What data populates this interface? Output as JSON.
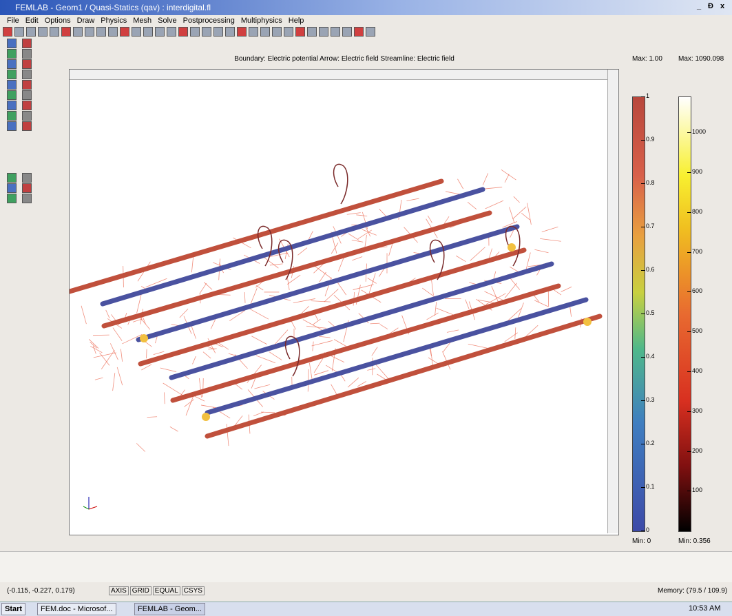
{
  "window": {
    "title": "FEMLAB - Geom1 / Quasi-Statics (qav) : interdigital.fl",
    "controls": [
      "_",
      "Đ",
      "x"
    ]
  },
  "menu": [
    "File",
    "Edit",
    "Options",
    "Draw",
    "Physics",
    "Mesh",
    "Solve",
    "Postprocessing",
    "Multiphysics",
    "Help"
  ],
  "plot": {
    "title": "Boundary: Electric potential  Arrow: Electric field  Streamline: Electric field"
  },
  "colorbars": [
    {
      "max_label": "Max: 1.00",
      "min_label": "Min: 0",
      "range": [
        0,
        1
      ],
      "ticks": [
        1,
        0.9,
        0.8,
        0.7,
        0.6,
        0.5,
        0.4,
        0.3,
        0.2,
        0.1,
        0
      ]
    },
    {
      "max_label": "Max: 1090.098",
      "min_label": "Min: 0.356",
      "range": [
        0.356,
        1090.098
      ],
      "ticks": [
        1000,
        900,
        800,
        700,
        600,
        500,
        400,
        300,
        200,
        100
      ]
    }
  ],
  "status": {
    "coords": "(-0.115, -0.227, 0.179)",
    "buttons": [
      "AXIS",
      "GRID",
      "EQUAL",
      "CSYS"
    ],
    "memory": "Memory: (79.5 / 109.9)"
  },
  "taskbar": {
    "start": "Start",
    "tasks": [
      "FEM.doc - Microsof...",
      "FEMLAB - Geom..."
    ],
    "clock": "10:53 AM"
  }
}
